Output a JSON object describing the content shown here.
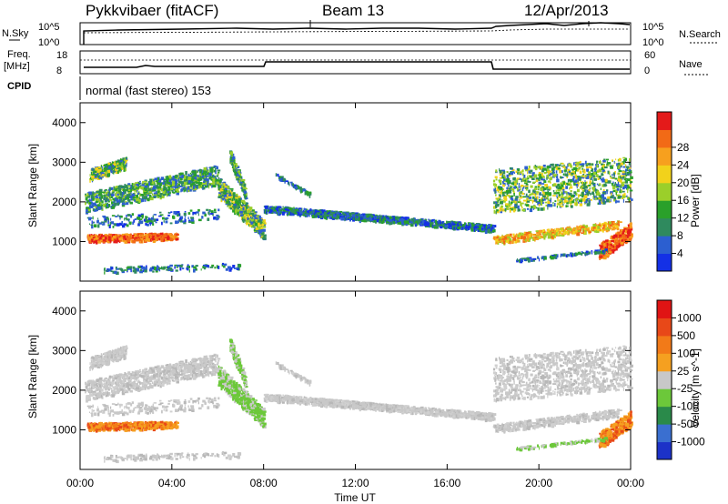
{
  "header": {
    "station": "Pykkvibaer (fitACF)",
    "beam": "Beam 13",
    "date": "12/Apr/2013"
  },
  "top_panels": {
    "nsky_label": "N.Sky",
    "nsky_ticks": [
      "10^5",
      "10^0"
    ],
    "nsearch_label": "N.Search",
    "nsearch_ticks": [
      "10^5",
      "10^0"
    ],
    "freq_label": "Freq.",
    "freq_unit": "[MHz]",
    "freq_ticks": [
      "18",
      "8"
    ],
    "nave_label": "Nave",
    "nave_ticks": [
      "60",
      "0"
    ],
    "cpid_label": "CPID",
    "cpid_text": "normal (fast stereo) 153"
  },
  "chart_data": [
    {
      "type": "heatmap",
      "title": "",
      "xlabel": "Time UT",
      "ylabel": "Slant Range [km]",
      "x_ticks": [
        "00:00",
        "04:00",
        "08:00",
        "12:00",
        "16:00",
        "20:00",
        "00:00"
      ],
      "y_ticks": [
        "1000",
        "2000",
        "3000",
        "4000"
      ],
      "ylim": [
        0,
        4500
      ],
      "colorbar": {
        "label": "Power [dB]",
        "ticks": [
          "4",
          "8",
          "12",
          "16",
          "20",
          "24",
          "28"
        ],
        "colors": [
          "#1430e6",
          "#2c5fd0",
          "#2f8a5e",
          "#2aa02a",
          "#9bcf2a",
          "#f2d21b",
          "#f7a01e",
          "#f26a16",
          "#e41a1a"
        ]
      }
    },
    {
      "type": "heatmap",
      "title": "",
      "xlabel": "Time UT",
      "ylabel": "Slant Range [km]",
      "x_ticks": [
        "00:00",
        "04:00",
        "08:00",
        "12:00",
        "16:00",
        "20:00",
        "00:00"
      ],
      "y_ticks": [
        "1000",
        "2000",
        "3000",
        "4000"
      ],
      "ylim": [
        0,
        4500
      ],
      "colorbar": {
        "label": "Velocity [m s^-1]",
        "ticks": [
          "1000",
          "500",
          "100",
          "25",
          "-25",
          "-100",
          "-500",
          "-1000"
        ],
        "colors": [
          "#1c32c8",
          "#3a6fd0",
          "#2a8a4a",
          "#6cc83a",
          "#c8c8c8",
          "#f5a020",
          "#f27a18",
          "#e84818",
          "#e01414"
        ]
      }
    }
  ]
}
